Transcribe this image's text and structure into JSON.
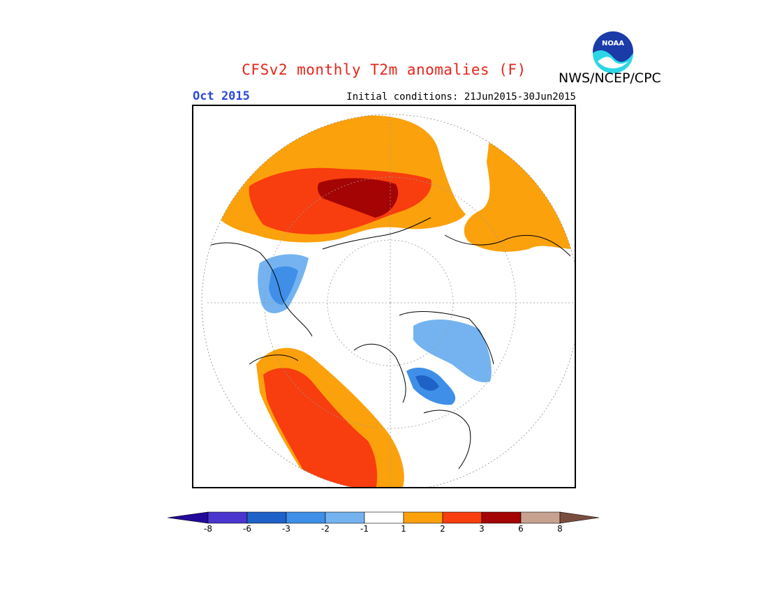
{
  "header": {
    "title": "CFSv2 monthly T2m anomalies (F)",
    "valid_month": "Oct 2015",
    "initial_conditions": "Initial conditions: 21Jun2015-30Jun2015",
    "organization": "NWS/NCEP/CPC",
    "logo_text": "NOAA",
    "logo_icon": "noaa-logo-icon"
  },
  "map": {
    "projection": "north-polar-stereographic",
    "variable": "T2m anomaly",
    "units": "F",
    "colors": {
      "blue_light": "#74b3f0",
      "blue_mid": "#3f8fe8",
      "blue_dark": "#1e62c8",
      "orange": "#fba10c",
      "red_orange": "#f83d0f",
      "dark_red": "#a40404",
      "land_outline": "#000000"
    }
  },
  "colorbar": {
    "labels": [
      "-8",
      "-6",
      "-3",
      "-2",
      "-1",
      "1",
      "2",
      "3",
      "6",
      "8"
    ],
    "colors": [
      "#23099c",
      "#4a35ce",
      "#1e62c8",
      "#3f8fe8",
      "#74b3f0",
      "#ffffff",
      "#fba10c",
      "#f83d0f",
      "#a40404",
      "#c8a290",
      "#7a4e3e"
    ]
  }
}
